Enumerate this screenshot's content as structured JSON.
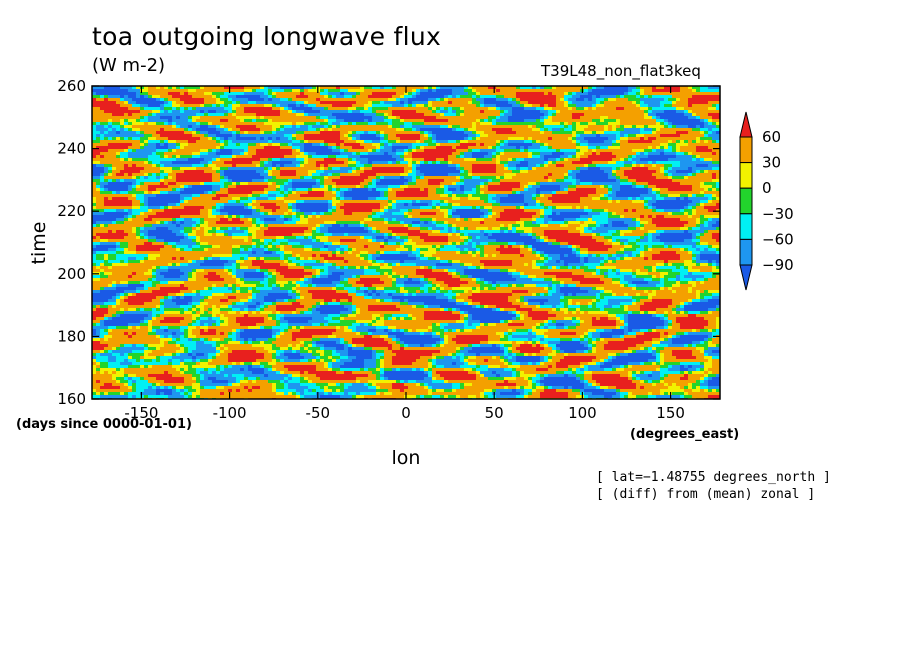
{
  "chart_data": {
    "type": "heatmap",
    "title": "toa outgoing longwave flux",
    "units": "(W m-2)",
    "experiment": "T39L48_non_flat3keq",
    "xlabel": "lon",
    "ylabel": "time",
    "x_units": "(degrees_east)",
    "y_units": "(days since 0000-01-01)",
    "xlim": [
      -178,
      178
    ],
    "ylim": [
      160,
      260
    ],
    "x_ticks": [
      "-150",
      "-100",
      "-50",
      "0",
      "50",
      "100",
      "150"
    ],
    "x_tick_values": [
      -150,
      -100,
      -50,
      0,
      50,
      100,
      150
    ],
    "y_ticks": [
      "160",
      "180",
      "200",
      "220",
      "240",
      "260"
    ],
    "y_tick_values": [
      160,
      180,
      200,
      220,
      240,
      260
    ],
    "colorbar": {
      "labels": [
        "60",
        "30",
        "0",
        "−30",
        "−60",
        "−90"
      ],
      "levels": [
        60,
        30,
        0,
        -30,
        -60,
        -90
      ],
      "colors": [
        "#e8201e",
        "#f4a000",
        "#f2f200",
        "#22d42c",
        "#00f0f4",
        "#1e96f0",
        "#1a5ae6"
      ]
    },
    "notes": [
      "[ lat=−1.48755 degrees_north ]",
      "[ (diff) from (mean) zonal ]"
    ]
  }
}
